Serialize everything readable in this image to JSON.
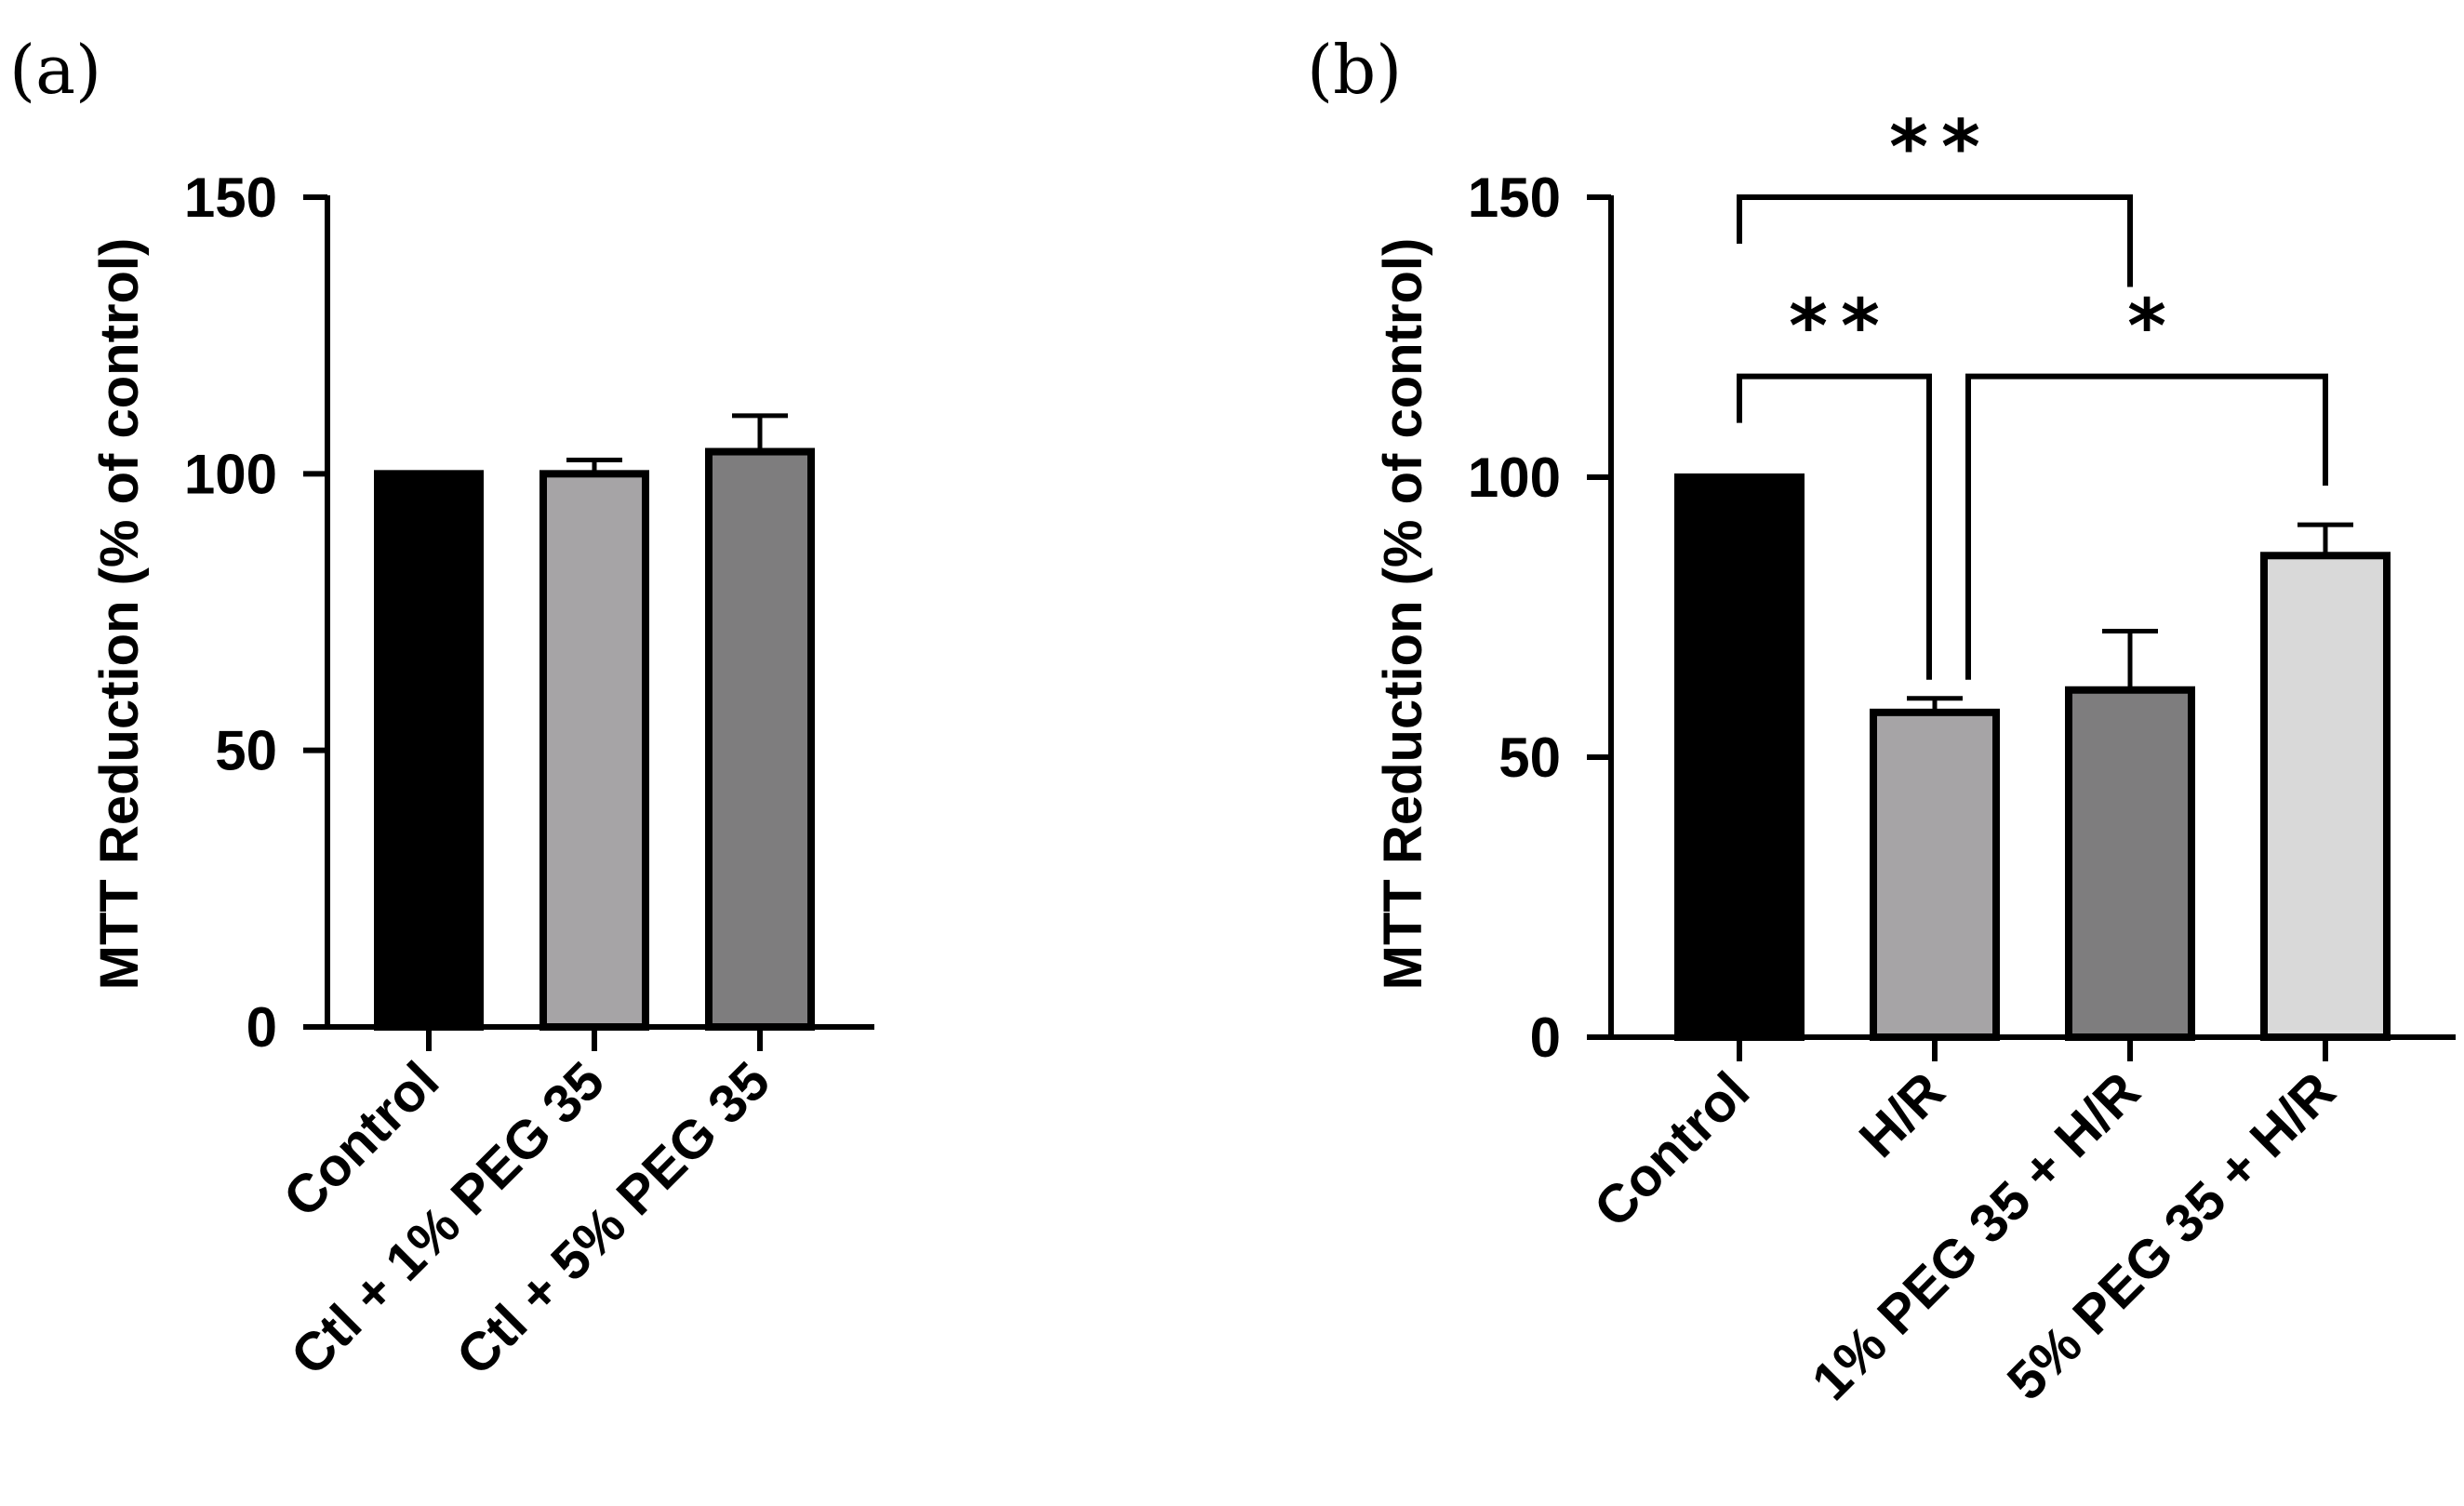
{
  "chart_data": [
    {
      "panel": "(a)",
      "type": "bar",
      "ylabel": "MTT Reduction  (% of control)",
      "ylim": [
        0,
        150
      ],
      "yticks": [
        0,
        50,
        100,
        150
      ],
      "categories": [
        "Control",
        "Ctl + 1% PEG 35",
        "Ctl + 5% PEG 35"
      ],
      "values": [
        100,
        100,
        104
      ],
      "errors": [
        0,
        2.5,
        6.5
      ],
      "colors": [
        "#000000",
        "#a6a4a6",
        "#7e7d7e"
      ],
      "significance": []
    },
    {
      "panel": "(b)",
      "type": "bar",
      "ylabel": "MTT Reduction  (% of control)",
      "ylim": [
        0,
        150
      ],
      "yticks": [
        0,
        50,
        100,
        150
      ],
      "categories": [
        "Control",
        "H/R",
        "1% PEG 35 + H/R",
        "5% PEG 35 + H/R"
      ],
      "values": [
        100,
        58,
        62,
        86
      ],
      "errors": [
        0,
        2.5,
        10.5,
        5.5
      ],
      "colors": [
        "#000000",
        "#a6a4a6",
        "#7e7d7e",
        "#d9d9d9"
      ],
      "significance": [
        {
          "from": 0,
          "to": 2,
          "label": "**",
          "level": 150
        },
        {
          "from": 0,
          "to": 1,
          "label": "**",
          "level": 118
        },
        {
          "from": 1,
          "to": 3,
          "label": "*",
          "level": 118
        }
      ]
    }
  ]
}
